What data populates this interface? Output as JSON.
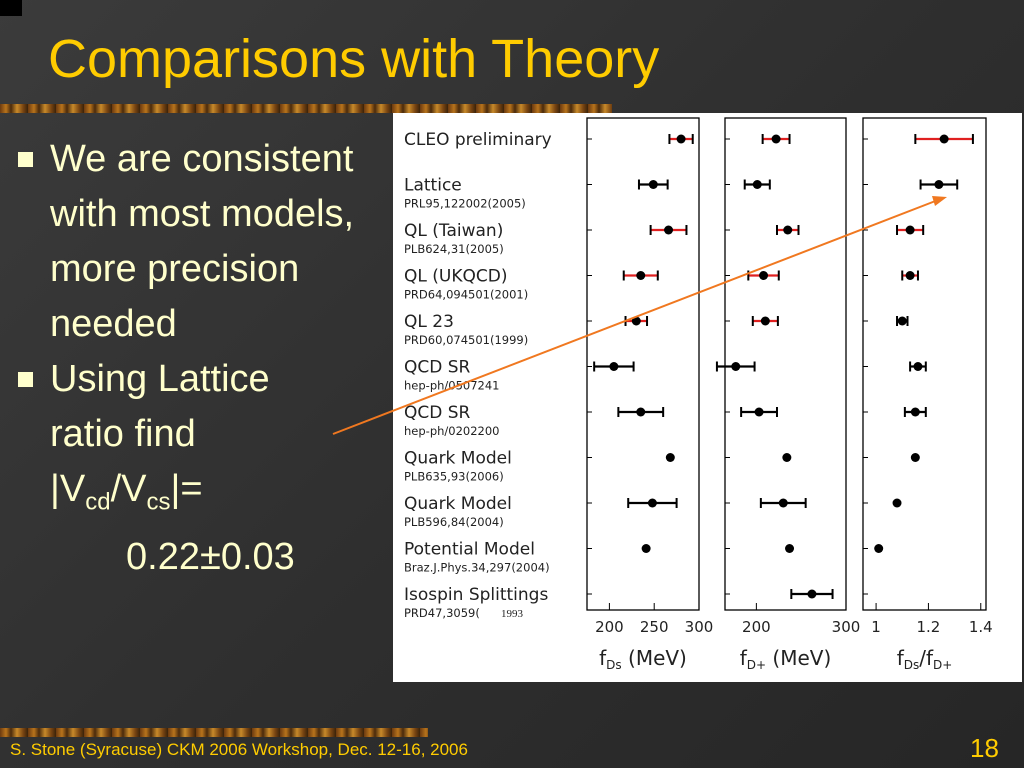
{
  "slide": {
    "title": "Comparisons with Theory",
    "bullets": [
      "We are consistent with most models, more precision needed"
    ],
    "bullet2": {
      "line1": "Using Lattice",
      "line2": "ratio find",
      "v1": "|V",
      "sub1": "cd",
      "v2": "/V",
      "sub2": "cs",
      "v3": "|=",
      "value": "0.22±0.03"
    },
    "footer": "S. Stone (Syracuse) CKM 2006 Workshop, Dec. 12-16, 2006",
    "page_number": "18"
  },
  "colors": {
    "title": "#ffcc00",
    "body_text": "#ffffcc",
    "arrow": "#f07820",
    "cleo_marker": "#e02020",
    "standard_marker": "#000000"
  },
  "chart_data": {
    "type": "scatter",
    "rows": [
      {
        "label": "CLEO preliminary",
        "ref": ""
      },
      {
        "label": "Lattice",
        "ref": "PRL95,122002(2005)"
      },
      {
        "label": "QL (Taiwan)",
        "ref": "PLB624,31(2005)"
      },
      {
        "label": "QL (UKQCD)",
        "ref": "PRD64,094501(2001)"
      },
      {
        "label": "QL 23",
        "ref": "PRD60,074501(1999)"
      },
      {
        "label": "QCD SR",
        "ref": "hep-ph/0507241"
      },
      {
        "label": "QCD SR",
        "ref": "hep-ph/0202200"
      },
      {
        "label": "Quark Model",
        "ref": "PLB635,93(2006)"
      },
      {
        "label": "Quark Model",
        "ref": "PLB596,84(2004)"
      },
      {
        "label": "Potential Model",
        "ref": "Braz.J.Phys.34,297(2004)"
      },
      {
        "label": "Isospin Splittings",
        "ref": "PRD47,3059(",
        "ref_extra": "1993"
      }
    ],
    "panels": [
      {
        "xlabel": "f",
        "xlabel_sub": "Ds",
        "xlabel_unit": " (MeV)",
        "xlim": [
          175,
          300
        ],
        "ticks": [
          200,
          250,
          300
        ],
        "points": [
          {
            "row": 0,
            "value": 280,
            "err": 13,
            "red": true
          },
          {
            "row": 1,
            "value": 249,
            "err": 16,
            "red": false
          },
          {
            "row": 2,
            "value": 266,
            "err": 20,
            "red": true
          },
          {
            "row": 3,
            "value": 235,
            "err": 19,
            "red": true
          },
          {
            "row": 4,
            "value": 230,
            "err": 12,
            "red": true
          },
          {
            "row": 5,
            "value": 205,
            "err": 22,
            "red": false
          },
          {
            "row": 6,
            "value": 235,
            "err": 25,
            "red": false
          },
          {
            "row": 7,
            "value": 268,
            "err": 0,
            "red": false
          },
          {
            "row": 8,
            "value": 248,
            "err": 27,
            "red": false
          },
          {
            "row": 9,
            "value": 241,
            "err": 0,
            "red": false
          },
          {
            "row": 10,
            "value": null,
            "err": 0,
            "red": false
          }
        ]
      },
      {
        "xlabel": "f",
        "xlabel_sub": "D+",
        "xlabel_unit": " (MeV)",
        "xlim": [
          165,
          300
        ],
        "ticks": [
          200,
          300
        ],
        "points": [
          {
            "row": 0,
            "value": 222,
            "err": 15,
            "red": true
          },
          {
            "row": 1,
            "value": 201,
            "err": 14,
            "red": false
          },
          {
            "row": 2,
            "value": 235,
            "err": 12,
            "red": true
          },
          {
            "row": 3,
            "value": 208,
            "err": 17,
            "red": true
          },
          {
            "row": 4,
            "value": 210,
            "err": 14,
            "red": true
          },
          {
            "row": 5,
            "value": 177,
            "err": 21,
            "red": false
          },
          {
            "row": 6,
            "value": 203,
            "err": 20,
            "red": false
          },
          {
            "row": 7,
            "value": 234,
            "err": 0,
            "red": false
          },
          {
            "row": 8,
            "value": 230,
            "err": 25,
            "red": false
          },
          {
            "row": 9,
            "value": 237,
            "err": 0,
            "red": false
          },
          {
            "row": 10,
            "value": 262,
            "err": 23,
            "red": false
          }
        ]
      },
      {
        "xlabel": "f",
        "xlabel_sub": "Ds",
        "xlabel_slash": "/f",
        "xlabel_sub2": "D+",
        "xlim": [
          0.95,
          1.42
        ],
        "ticks": [
          1,
          1.2,
          1.4
        ],
        "points": [
          {
            "row": 0,
            "value": 1.26,
            "err": 0.11,
            "red": true
          },
          {
            "row": 1,
            "value": 1.24,
            "err": 0.07,
            "red": false
          },
          {
            "row": 2,
            "value": 1.13,
            "err": 0.05,
            "red": true
          },
          {
            "row": 3,
            "value": 1.13,
            "err": 0.03,
            "red": true
          },
          {
            "row": 4,
            "value": 1.1,
            "err": 0.02,
            "red": false
          },
          {
            "row": 5,
            "value": 1.16,
            "err": 0.03,
            "red": false
          },
          {
            "row": 6,
            "value": 1.15,
            "err": 0.04,
            "red": false
          },
          {
            "row": 7,
            "value": 1.15,
            "err": 0,
            "red": false
          },
          {
            "row": 8,
            "value": 1.08,
            "err": 0,
            "red": false
          },
          {
            "row": 9,
            "value": 1.01,
            "err": 0,
            "red": false
          },
          {
            "row": 10,
            "value": null,
            "err": 0,
            "red": false
          }
        ]
      }
    ]
  }
}
